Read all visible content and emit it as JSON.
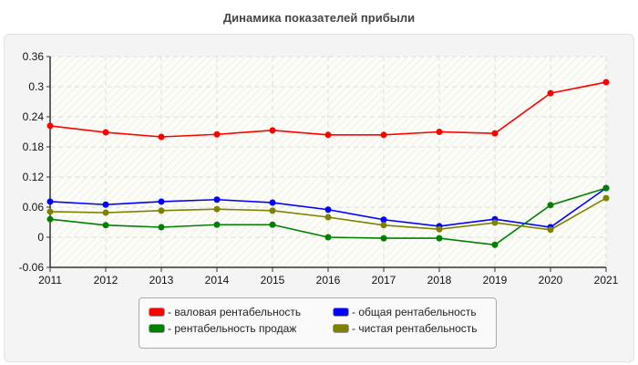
{
  "chart_data": {
    "type": "line",
    "title": "Динамика показателей прибыли",
    "xlabel": "",
    "ylabel": "",
    "x": [
      2011,
      2012,
      2013,
      2014,
      2015,
      2016,
      2017,
      2018,
      2019,
      2020,
      2021
    ],
    "x_tick_labels": [
      "2011",
      "2012",
      "2013",
      "2014",
      "2015",
      "2016",
      "2017",
      "2018",
      "2019",
      "2020",
      "2021"
    ],
    "ylim": [
      -0.06,
      0.36
    ],
    "y_ticks": [
      -0.06,
      0,
      0.06,
      0.12,
      0.18,
      0.24,
      0.3,
      0.36
    ],
    "y_tick_labels": [
      "-0.06",
      "0",
      "0.06",
      "0.12",
      "0.18",
      "0.24",
      "0.3",
      "0.36"
    ],
    "grid": true,
    "legend_placement": "bottom",
    "series": [
      {
        "name": "валовая рентабельность",
        "color": "#ff0000",
        "values": [
          0.222,
          0.209,
          0.2,
          0.205,
          0.213,
          0.204,
          0.204,
          0.21,
          0.207,
          0.287,
          0.309
        ]
      },
      {
        "name": "общая рентабельность",
        "color": "#0000ff",
        "values": [
          0.071,
          0.065,
          0.071,
          0.075,
          0.069,
          0.055,
          0.035,
          0.022,
          0.036,
          0.02,
          0.098
        ]
      },
      {
        "name": "рентабельность продаж",
        "color": "#008000",
        "values": [
          0.036,
          0.024,
          0.02,
          0.025,
          0.025,
          0.0,
          -0.002,
          -0.002,
          -0.015,
          0.064,
          0.098
        ]
      },
      {
        "name": "чистая рентабельность",
        "color": "#808000",
        "values": [
          0.051,
          0.049,
          0.053,
          0.056,
          0.053,
          0.04,
          0.024,
          0.016,
          0.029,
          0.015,
          0.078
        ]
      }
    ]
  }
}
